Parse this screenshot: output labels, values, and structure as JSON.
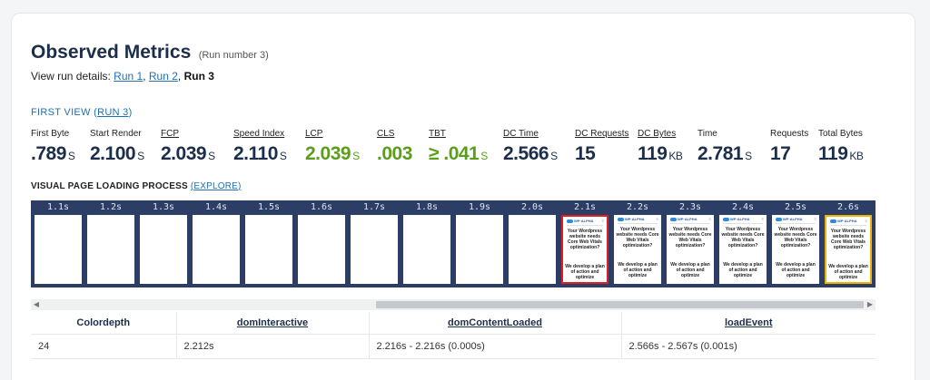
{
  "header": {
    "title": "Observed Metrics",
    "run_number": "(Run number 3)"
  },
  "run_details": {
    "prefix": "View run details:",
    "runs": [
      "Run 1",
      "Run 2",
      "Run 3"
    ],
    "current": "Run 3"
  },
  "first_view": {
    "label": "FIRST VIEW",
    "run_link": "RUN 3"
  },
  "metrics": [
    {
      "label": "First Byte",
      "value": ".789",
      "unit": "S",
      "underline": false,
      "good": false
    },
    {
      "label": "Start Render",
      "value": "2.100",
      "unit": "S",
      "underline": false,
      "good": false
    },
    {
      "label": "FCP",
      "value": "2.039",
      "unit": "S",
      "underline": true,
      "good": false
    },
    {
      "label": "Speed Index",
      "value": "2.110",
      "unit": "S",
      "underline": true,
      "good": false
    },
    {
      "label": "LCP",
      "value": "2.039",
      "unit": "S",
      "underline": true,
      "good": true
    },
    {
      "label": "CLS",
      "value": ".003",
      "unit": "",
      "underline": true,
      "good": true
    },
    {
      "label": "TBT",
      "value": "≥ .041",
      "unit": "S",
      "underline": true,
      "good": true
    },
    {
      "label": "DC Time",
      "value": "2.566",
      "unit": "S",
      "underline": true,
      "good": false
    },
    {
      "label": "DC Requests",
      "value": "15",
      "unit": "",
      "underline": true,
      "good": false
    },
    {
      "label": "DC Bytes",
      "value": "119",
      "unit": "KB",
      "underline": true,
      "good": false
    },
    {
      "label": "Time",
      "value": "2.781",
      "unit": "S",
      "underline": false,
      "good": false
    },
    {
      "label": "Requests",
      "value": "17",
      "unit": "",
      "underline": false,
      "good": false
    },
    {
      "label": "Total Bytes",
      "value": "119",
      "unit": "KB",
      "underline": false,
      "good": false
    }
  ],
  "visual_loading": {
    "label": "VISUAL PAGE LOADING PROCESS",
    "explore": "EXPLORE"
  },
  "filmstrip": [
    {
      "time": "1.1s",
      "state": "blank"
    },
    {
      "time": "1.2s",
      "state": "blank"
    },
    {
      "time": "1.3s",
      "state": "blank"
    },
    {
      "time": "1.4s",
      "state": "blank"
    },
    {
      "time": "1.5s",
      "state": "blank"
    },
    {
      "time": "1.6s",
      "state": "blank"
    },
    {
      "time": "1.7s",
      "state": "blank"
    },
    {
      "time": "1.8s",
      "state": "blank"
    },
    {
      "time": "1.9s",
      "state": "blank"
    },
    {
      "time": "2.0s",
      "state": "blank"
    },
    {
      "time": "2.1s",
      "state": "changed"
    },
    {
      "time": "2.2s",
      "state": "content"
    },
    {
      "time": "2.3s",
      "state": "content"
    },
    {
      "time": "2.4s",
      "state": "content"
    },
    {
      "time": "2.5s",
      "state": "content"
    },
    {
      "time": "2.6s",
      "state": "last"
    }
  ],
  "thumb_content": {
    "heading": "Your Wordpress website needs Core Web Vitals optimization?",
    "sub": "We develop a plan of action and optimize",
    "brand": "WP·ALPHA",
    "menu": "≡"
  },
  "scrollbar": {
    "left_arrow": "◀",
    "right_arrow": "▶"
  },
  "table": {
    "columns": [
      {
        "label": "Colordepth",
        "underline": false
      },
      {
        "label": "domInteractive",
        "underline": true
      },
      {
        "label": "domContentLoaded",
        "underline": true
      },
      {
        "label": "loadEvent",
        "underline": true
      }
    ],
    "rows": [
      [
        "24",
        "2.212s",
        "2.216s - 2.216s (0.000s)",
        "2.566s - 2.567s (0.001s)"
      ]
    ]
  }
}
